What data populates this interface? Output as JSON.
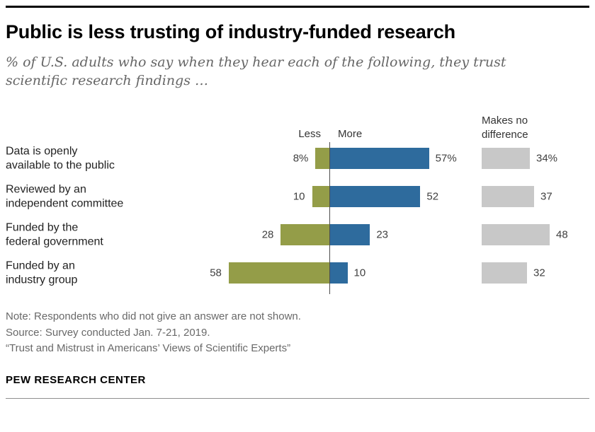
{
  "header": {
    "title": "Public is less trusting of industry-funded research",
    "subtitle": "% of U.S. adults who say when they hear each of the following, they trust\nscientific research findings …"
  },
  "chart_data": {
    "type": "bar",
    "variant": "diverging-horizontal",
    "title": "Public is less trusting of industry-funded research",
    "axis_labels": {
      "less": "Less",
      "more": "More",
      "no_difference": "Makes no difference"
    },
    "categories": [
      "Data is openly\navailable to the public",
      "Reviewed by an\nindependent committee",
      "Funded by the\nfederal government",
      "Funded by an\nindustry group"
    ],
    "series": [
      {
        "name": "Less",
        "color": "#949d48",
        "values": [
          8,
          10,
          28,
          58
        ],
        "labels": [
          "8%",
          "10",
          "28",
          "58"
        ]
      },
      {
        "name": "More",
        "color": "#2e6b9d",
        "values": [
          57,
          52,
          23,
          10
        ],
        "labels": [
          "57%",
          "52",
          "23",
          "10"
        ]
      },
      {
        "name": "Makes no difference",
        "color": "#c8c8c8",
        "values": [
          34,
          37,
          48,
          32
        ],
        "labels": [
          "34%",
          "37",
          "48",
          "32"
        ]
      }
    ],
    "xlim": [
      0,
      60
    ],
    "grid": false,
    "legend_position": "column-headers"
  },
  "footer": {
    "note": "Note: Respondents who did not give an answer are not shown.",
    "source": "Source: Survey conducted Jan. 7-21, 2019.",
    "report": "“Trust and Mistrust in Americans’ Views of Scientific Experts”",
    "brand": "PEW RESEARCH CENTER"
  }
}
